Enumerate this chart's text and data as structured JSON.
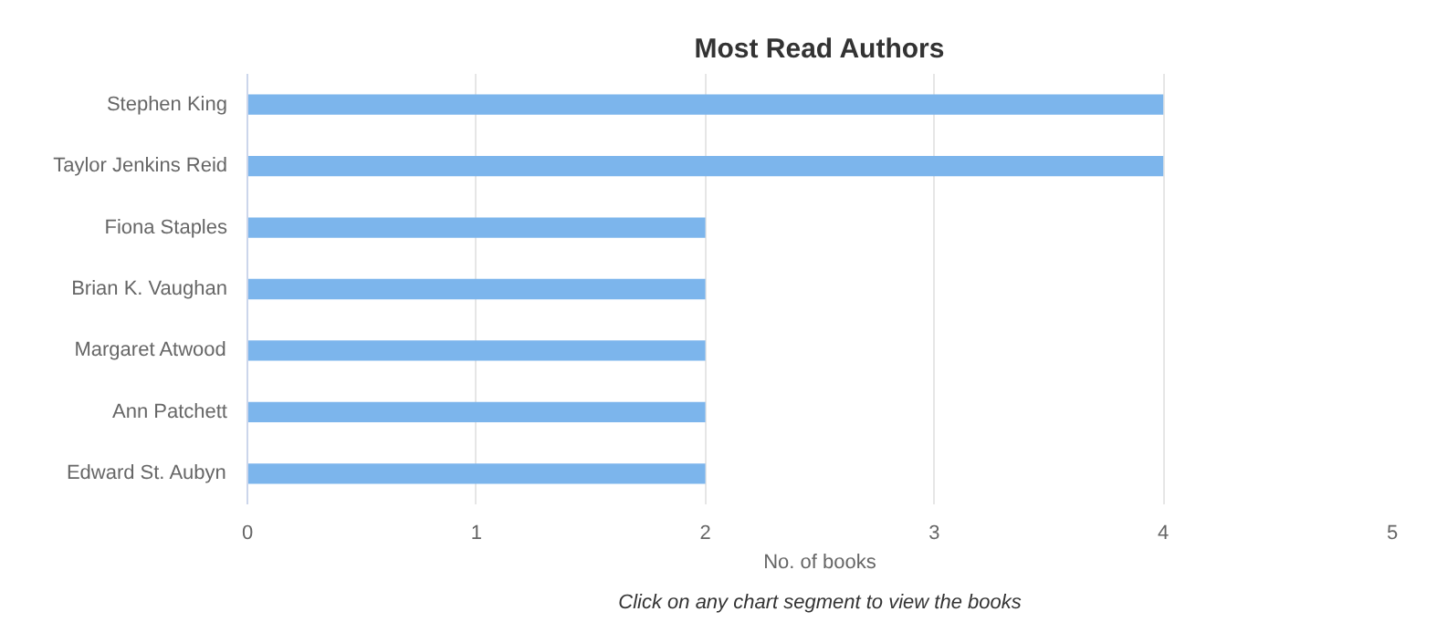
{
  "chart_data": {
    "type": "bar",
    "orientation": "horizontal",
    "title": "Most Read Authors",
    "xlabel": "No. of books",
    "categories": [
      "Stephen King",
      "Taylor Jenkins Reid",
      "Fiona Staples",
      "Brian K. Vaughan",
      "Margaret Atwood",
      "Ann Patchett",
      "Edward St. Aubyn"
    ],
    "values": [
      4,
      4,
      2,
      2,
      2,
      2,
      2
    ],
    "color": "#7cb5ec",
    "xlim": [
      0,
      5
    ],
    "xticks": [
      0,
      1,
      2,
      3,
      4,
      5
    ],
    "grid": "x",
    "annotations": [
      "Click on any chart segment to view the books"
    ]
  }
}
